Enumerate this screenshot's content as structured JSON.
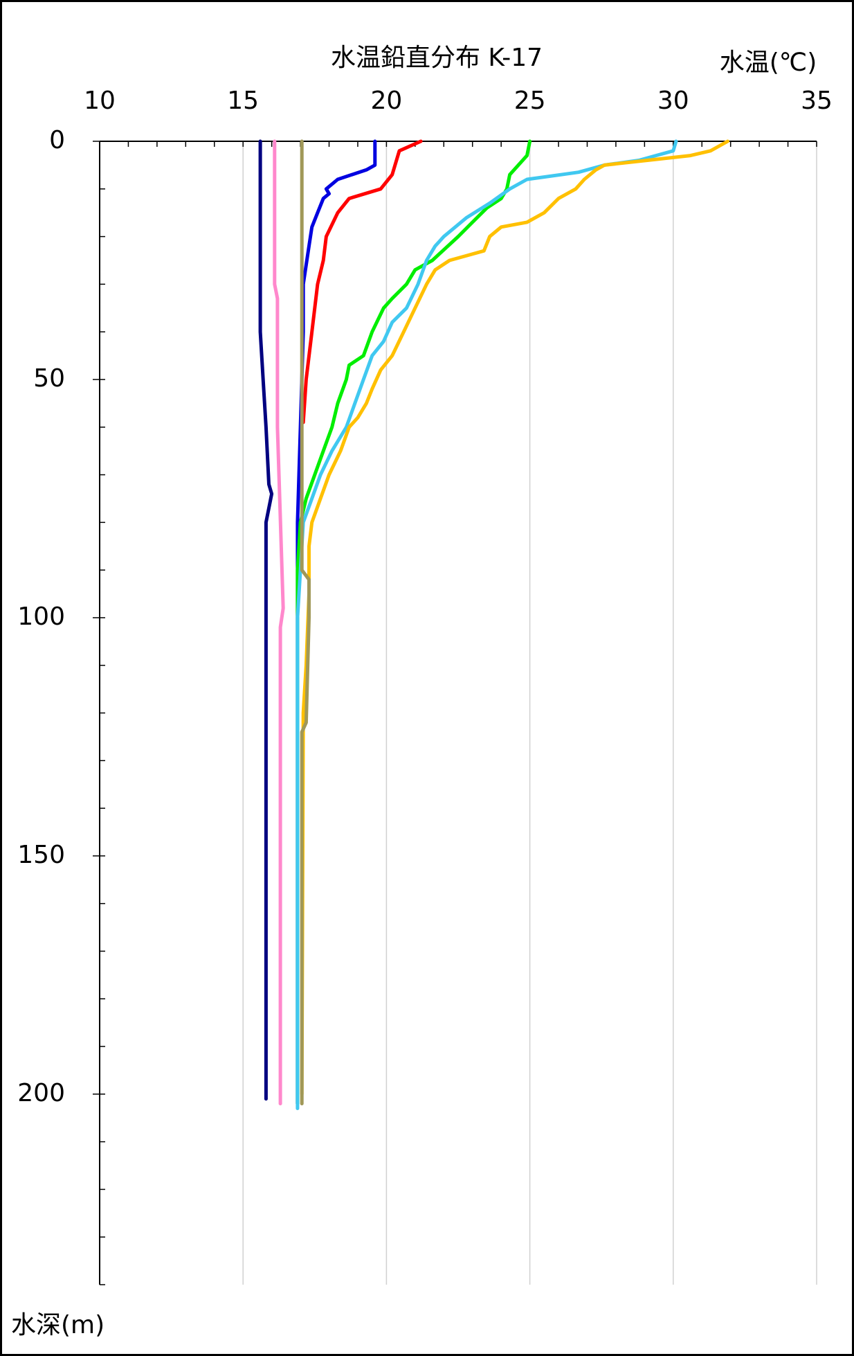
{
  "chart_data": {
    "type": "line",
    "title": "水温鉛直分布 K-17",
    "xlabel": "水温(℃)",
    "ylabel": "水深(m)",
    "xlim": [
      10,
      35
    ],
    "xticks": [
      10,
      15,
      20,
      25,
      30,
      35
    ],
    "xminor_step": 1,
    "ylim": [
      0,
      240
    ],
    "yticks": [
      0,
      50,
      100,
      150,
      200
    ],
    "yminor_step": 10,
    "y_inverted": true,
    "grid": true,
    "series": [
      {
        "color": "#000080",
        "depths": [
          0,
          20,
          40,
          50,
          60,
          72,
          74,
          80,
          100,
          125,
          201
        ],
        "values": [
          15.6,
          15.6,
          15.6,
          15.7,
          15.8,
          15.9,
          16.0,
          15.8,
          15.8,
          15.8,
          15.8
        ]
      },
      {
        "color": "#0000e0",
        "depths": [
          0,
          5,
          6,
          8,
          10,
          11,
          12,
          15,
          18,
          22,
          30,
          40,
          60,
          80,
          202
        ],
        "values": [
          19.6,
          19.6,
          19.3,
          18.3,
          17.9,
          18.0,
          17.8,
          17.6,
          17.4,
          17.3,
          17.1,
          17.1,
          17.0,
          16.9,
          16.9
        ]
      },
      {
        "color": "#ff0000",
        "depths": [
          0,
          2,
          7,
          10,
          12,
          15,
          20,
          25,
          30,
          40,
          50,
          59
        ],
        "values": [
          21.2,
          20.45,
          20.2,
          19.8,
          18.7,
          18.3,
          17.9,
          17.8,
          17.6,
          17.4,
          17.2,
          17.1
        ]
      },
      {
        "color": "#ff88cc",
        "depths": [
          0,
          30,
          33,
          60,
          98,
          102,
          202
        ],
        "values": [
          16.1,
          16.1,
          16.2,
          16.2,
          16.4,
          16.3,
          16.3
        ]
      },
      {
        "color": "#00ee00",
        "depths": [
          0,
          3,
          7,
          10,
          12,
          14,
          17,
          20,
          25,
          27,
          30,
          33,
          35,
          40,
          45,
          47,
          50,
          55,
          60,
          65,
          70,
          75,
          80,
          90,
          202
        ],
        "values": [
          25.0,
          24.9,
          24.3,
          24.2,
          24.0,
          23.5,
          23.0,
          22.5,
          21.6,
          21.0,
          20.7,
          20.2,
          19.9,
          19.5,
          19.2,
          18.7,
          18.6,
          18.3,
          18.1,
          17.8,
          17.5,
          17.2,
          17.0,
          16.9,
          16.9
        ]
      },
      {
        "color": "#40c8f0",
        "depths": [
          0,
          2,
          3,
          4,
          5,
          6.5,
          8,
          10,
          13,
          16,
          20,
          22,
          25,
          30,
          35,
          38,
          42,
          45,
          50,
          55,
          60,
          65,
          70,
          75,
          80,
          90,
          100,
          203
        ],
        "values": [
          30.1,
          30.0,
          29.4,
          28.8,
          27.6,
          26.7,
          24.9,
          24.3,
          23.6,
          22.8,
          22.0,
          21.7,
          21.4,
          21.1,
          20.7,
          20.2,
          19.9,
          19.5,
          19.2,
          18.9,
          18.6,
          18.1,
          17.7,
          17.4,
          17.1,
          17.0,
          16.9,
          16.9
        ]
      },
      {
        "color": "#ffc000",
        "depths": [
          0,
          2,
          3,
          4,
          5,
          6,
          8,
          10,
          12,
          15,
          17,
          18,
          20,
          23,
          24,
          25,
          27,
          30,
          35,
          40,
          45,
          48,
          52,
          55,
          58,
          60,
          65,
          70,
          75,
          80,
          85,
          95,
          110,
          120,
          200
        ],
        "values": [
          31.9,
          31.3,
          30.6,
          29.1,
          27.6,
          27.3,
          26.9,
          26.6,
          26.0,
          25.5,
          24.9,
          24.0,
          23.6,
          23.4,
          22.8,
          22.2,
          21.7,
          21.4,
          21.0,
          20.6,
          20.2,
          19.8,
          19.5,
          19.3,
          19.0,
          18.7,
          18.4,
          18.0,
          17.7,
          17.4,
          17.3,
          17.3,
          17.2,
          17.1,
          17.05
        ]
      },
      {
        "color": "#a09858",
        "depths": [
          0,
          90,
          92,
          100,
          122,
          124,
          202
        ],
        "values": [
          17.05,
          17.05,
          17.3,
          17.3,
          17.2,
          17.05,
          17.05
        ]
      }
    ]
  }
}
